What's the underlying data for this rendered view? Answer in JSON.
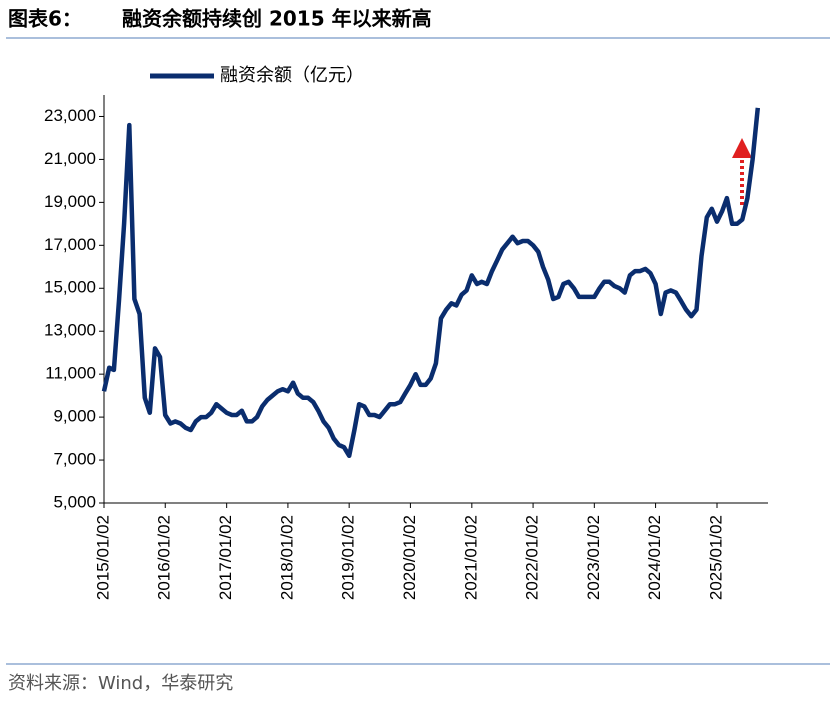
{
  "chart_data": {
    "type": "line",
    "label": "图表6：",
    "title": "融资余额持续创 2015 年以来新高",
    "source": "资料来源：Wind，华泰研究",
    "x": [
      "2015/01/02",
      "2015/02/02",
      "2015/03/02",
      "2015/04/02",
      "2015/05/02",
      "2015/06/02",
      "2015/07/02",
      "2015/08/02",
      "2015/09/02",
      "2015/10/02",
      "2015/11/02",
      "2015/12/02",
      "2016/01/02",
      "2016/02/02",
      "2016/03/02",
      "2016/04/02",
      "2016/05/02",
      "2016/06/02",
      "2016/07/02",
      "2016/08/02",
      "2016/09/02",
      "2016/10/02",
      "2016/11/02",
      "2016/12/02",
      "2017/01/02",
      "2017/02/02",
      "2017/03/02",
      "2017/04/02",
      "2017/05/02",
      "2017/06/02",
      "2017/07/02",
      "2017/08/02",
      "2017/09/02",
      "2017/10/02",
      "2017/11/02",
      "2017/12/02",
      "2018/01/02",
      "2018/02/02",
      "2018/03/02",
      "2018/04/02",
      "2018/05/02",
      "2018/06/02",
      "2018/07/02",
      "2018/08/02",
      "2018/09/02",
      "2018/10/02",
      "2018/11/02",
      "2018/12/02",
      "2019/01/02",
      "2019/02/02",
      "2019/03/02",
      "2019/04/02",
      "2019/05/02",
      "2019/06/02",
      "2019/07/02",
      "2019/08/02",
      "2019/09/02",
      "2019/10/02",
      "2019/11/02",
      "2019/12/02",
      "2020/01/02",
      "2020/02/02",
      "2020/03/02",
      "2020/04/02",
      "2020/05/02",
      "2020/06/02",
      "2020/07/02",
      "2020/08/02",
      "2020/09/02",
      "2020/10/02",
      "2020/11/02",
      "2020/12/02",
      "2021/01/02",
      "2021/02/02",
      "2021/03/02",
      "2021/04/02",
      "2021/05/02",
      "2021/06/02",
      "2021/07/02",
      "2021/08/02",
      "2021/09/02",
      "2021/10/02",
      "2021/11/02",
      "2021/12/02",
      "2022/01/02",
      "2022/02/02",
      "2022/03/02",
      "2022/04/02",
      "2022/05/02",
      "2022/06/02",
      "2022/07/02",
      "2022/08/02",
      "2022/09/02",
      "2022/10/02",
      "2022/11/02",
      "2022/12/02",
      "2023/01/02",
      "2023/02/02",
      "2023/03/02",
      "2023/04/02",
      "2023/05/02",
      "2023/06/02",
      "2023/07/02",
      "2023/08/02",
      "2023/09/02",
      "2023/10/02",
      "2023/11/02",
      "2023/12/02",
      "2024/01/02",
      "2024/02/02",
      "2024/03/02",
      "2024/04/02",
      "2024/05/02",
      "2024/06/02",
      "2024/07/02",
      "2024/08/02",
      "2024/09/02",
      "2024/10/02",
      "2024/11/02",
      "2024/12/02",
      "2025/01/02",
      "2025/02/02",
      "2025/03/02",
      "2025/04/02",
      "2025/05/02",
      "2025/06/02",
      "2025/07/02",
      "2025/08/02",
      "2025/09/02"
    ],
    "series": [
      {
        "name": "融资余额（亿元）",
        "color": "#0a2d6e",
        "values": [
          10200,
          11300,
          11200,
          14500,
          18000,
          22600,
          14500,
          13800,
          9900,
          9200,
          12200,
          11800,
          9100,
          8700,
          8800,
          8700,
          8500,
          8400,
          8800,
          9000,
          9000,
          9200,
          9600,
          9400,
          9200,
          9100,
          9100,
          9300,
          8800,
          8800,
          9000,
          9500,
          9800,
          10000,
          10200,
          10300,
          10200,
          10600,
          10100,
          9900,
          9900,
          9700,
          9300,
          8800,
          8500,
          8000,
          7700,
          7600,
          7200,
          8400,
          9600,
          9500,
          9100,
          9100,
          9000,
          9300,
          9600,
          9600,
          9700,
          10100,
          10500,
          11000,
          10500,
          10500,
          10800,
          11500,
          13600,
          14000,
          14300,
          14200,
          14700,
          14900,
          15600,
          15200,
          15300,
          15200,
          15800,
          16300,
          16800,
          17100,
          17400,
          17100,
          17200,
          17200,
          17000,
          16700,
          16000,
          15400,
          14500,
          14600,
          15200,
          15300,
          15000,
          14600,
          14600,
          14600,
          14600,
          15000,
          15300,
          15300,
          15100,
          15000,
          14800,
          15600,
          15800,
          15800,
          15900,
          15700,
          15200,
          13800,
          14800,
          14900,
          14800,
          14400,
          14000,
          13700,
          14000,
          16500,
          18300,
          18700,
          18100,
          18600,
          19200,
          18000,
          18000,
          18200,
          19200,
          21000,
          23400
        ]
      }
    ],
    "xlim": [
      "2015/01/02",
      "2025/11/02"
    ],
    "xticks": [
      "2015/01/02",
      "2016/01/02",
      "2017/01/02",
      "2018/01/02",
      "2019/01/02",
      "2020/01/02",
      "2021/01/02",
      "2022/01/02",
      "2023/01/02",
      "2024/01/02",
      "2025/01/02"
    ],
    "ylim": [
      5000,
      24000
    ],
    "yticks": [
      {
        "value": 5000,
        "label": "5,000"
      },
      {
        "value": 7000,
        "label": "7,000"
      },
      {
        "value": 9000,
        "label": "9,000"
      },
      {
        "value": 11000,
        "label": "11,000"
      },
      {
        "value": 13000,
        "label": "13,000"
      },
      {
        "value": 15000,
        "label": "15,000"
      },
      {
        "value": 17000,
        "label": "17,000"
      },
      {
        "value": 19000,
        "label": "19,000"
      },
      {
        "value": 21000,
        "label": "21,000"
      },
      {
        "value": 23000,
        "label": "23,000"
      }
    ],
    "grid": false,
    "legend": "top-left"
  }
}
